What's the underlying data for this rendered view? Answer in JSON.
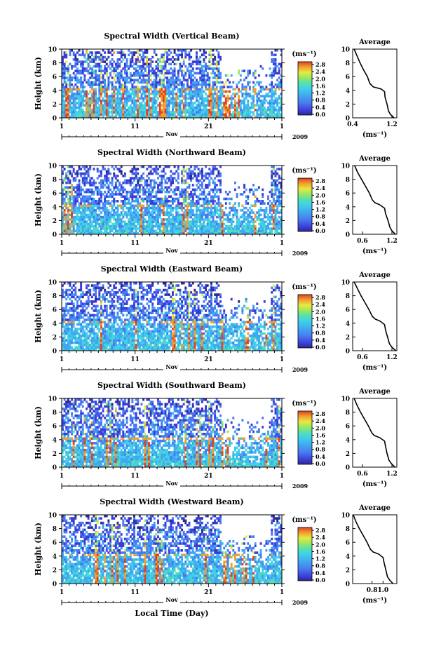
{
  "chart_data": {
    "type": "heatmap",
    "common": {
      "ylabel": "Height (km)",
      "yticks": [
        0,
        2,
        4,
        6,
        8,
        10
      ],
      "ylim": [
        0,
        10
      ],
      "xticks": [
        "1",
        "11",
        "21",
        "1"
      ],
      "month_label": "Nov",
      "year_label": "2009",
      "xlabel": "Local Time (Day)",
      "colorbar_unit": "(ms⁻¹)",
      "colorbar_ticks": [
        "0.0",
        "0.4",
        "0.8",
        "1.2",
        "1.6",
        "2.0",
        "2.4",
        "2.8"
      ],
      "colorbar_range": [
        0.0,
        3.0
      ],
      "profile_title": "Average",
      "profile_unit": "(ms⁻¹)"
    },
    "panels": [
      {
        "title": "Spectral Width (Vertical Beam)",
        "profile_xticks": [
          "0.4",
          "1.2"
        ],
        "profile_xlim": [
          0.4,
          1.3
        ],
        "profile": [
          {
            "h": 0.0,
            "v": 1.24
          },
          {
            "h": 0.5,
            "v": 1.17
          },
          {
            "h": 1.0,
            "v": 1.13
          },
          {
            "h": 2.0,
            "v": 1.1
          },
          {
            "h": 3.0,
            "v": 1.06
          },
          {
            "h": 3.8,
            "v": 1.05
          },
          {
            "h": 4.2,
            "v": 0.98
          },
          {
            "h": 4.5,
            "v": 0.82
          },
          {
            "h": 5.0,
            "v": 0.75
          },
          {
            "h": 6.0,
            "v": 0.7
          },
          {
            "h": 7.0,
            "v": 0.62
          },
          {
            "h": 8.0,
            "v": 0.55
          },
          {
            "h": 9.0,
            "v": 0.49
          },
          {
            "h": 10.0,
            "v": 0.43
          }
        ]
      },
      {
        "title": "Spectral Width (Northward Beam)",
        "profile_xticks": [
          "0.6",
          "1.2"
        ],
        "profile_xlim": [
          0.4,
          1.3
        ],
        "profile": [
          {
            "h": 0.0,
            "v": 1.27
          },
          {
            "h": 0.5,
            "v": 1.2
          },
          {
            "h": 1.0,
            "v": 1.16
          },
          {
            "h": 2.0,
            "v": 1.12
          },
          {
            "h": 3.0,
            "v": 1.07
          },
          {
            "h": 3.8,
            "v": 1.05
          },
          {
            "h": 4.3,
            "v": 0.95
          },
          {
            "h": 4.6,
            "v": 0.85
          },
          {
            "h": 5.0,
            "v": 0.8
          },
          {
            "h": 6.0,
            "v": 0.74
          },
          {
            "h": 7.0,
            "v": 0.66
          },
          {
            "h": 8.0,
            "v": 0.58
          },
          {
            "h": 9.0,
            "v": 0.5
          },
          {
            "h": 10.0,
            "v": 0.44
          }
        ]
      },
      {
        "title": "Spectral Width (Eastward Beam)",
        "profile_xticks": [
          "0.6",
          "1.2"
        ],
        "profile_xlim": [
          0.4,
          1.3
        ],
        "profile": [
          {
            "h": 0.0,
            "v": 1.28
          },
          {
            "h": 0.5,
            "v": 1.2
          },
          {
            "h": 1.0,
            "v": 1.15
          },
          {
            "h": 2.0,
            "v": 1.11
          },
          {
            "h": 3.0,
            "v": 1.07
          },
          {
            "h": 3.8,
            "v": 1.05
          },
          {
            "h": 4.3,
            "v": 0.96
          },
          {
            "h": 4.6,
            "v": 0.86
          },
          {
            "h": 5.0,
            "v": 0.8
          },
          {
            "h": 6.0,
            "v": 0.73
          },
          {
            "h": 7.0,
            "v": 0.65
          },
          {
            "h": 8.0,
            "v": 0.57
          },
          {
            "h": 9.0,
            "v": 0.5
          },
          {
            "h": 10.0,
            "v": 0.43
          }
        ]
      },
      {
        "title": "Spectral Width (Southward Beam)",
        "profile_xticks": [
          "0.6",
          "1.2"
        ],
        "profile_xlim": [
          0.4,
          1.3
        ],
        "profile": [
          {
            "h": 0.0,
            "v": 1.26
          },
          {
            "h": 0.5,
            "v": 1.19
          },
          {
            "h": 1.0,
            "v": 1.14
          },
          {
            "h": 2.0,
            "v": 1.1
          },
          {
            "h": 3.0,
            "v": 1.07
          },
          {
            "h": 3.8,
            "v": 1.05
          },
          {
            "h": 4.3,
            "v": 0.95
          },
          {
            "h": 4.6,
            "v": 0.84
          },
          {
            "h": 5.0,
            "v": 0.79
          },
          {
            "h": 6.0,
            "v": 0.72
          },
          {
            "h": 7.0,
            "v": 0.64
          },
          {
            "h": 8.0,
            "v": 0.56
          },
          {
            "h": 9.0,
            "v": 0.49
          },
          {
            "h": 10.0,
            "v": 0.43
          }
        ]
      },
      {
        "title": "Spectral Width (Westward Beam)",
        "profile_xticks": [
          "0.8",
          "1.0"
        ],
        "profile_xlim": [
          0.45,
          1.25
        ],
        "profile": [
          {
            "h": 0.0,
            "v": 1.18
          },
          {
            "h": 0.5,
            "v": 1.12
          },
          {
            "h": 1.0,
            "v": 1.08
          },
          {
            "h": 2.0,
            "v": 1.05
          },
          {
            "h": 3.0,
            "v": 1.02
          },
          {
            "h": 3.8,
            "v": 1.0
          },
          {
            "h": 4.3,
            "v": 0.92
          },
          {
            "h": 4.6,
            "v": 0.82
          },
          {
            "h": 5.0,
            "v": 0.77
          },
          {
            "h": 6.0,
            "v": 0.71
          },
          {
            "h": 7.0,
            "v": 0.64
          },
          {
            "h": 8.0,
            "v": 0.57
          },
          {
            "h": 9.0,
            "v": 0.51
          },
          {
            "h": 10.0,
            "v": 0.46
          }
        ]
      }
    ],
    "colormap": [
      "#2a2a8a",
      "#3b3bd8",
      "#4a78f0",
      "#3fa8f0",
      "#40d0e8",
      "#55e0b0",
      "#9ae860",
      "#e8e840",
      "#f0a030",
      "#e04020"
    ]
  }
}
